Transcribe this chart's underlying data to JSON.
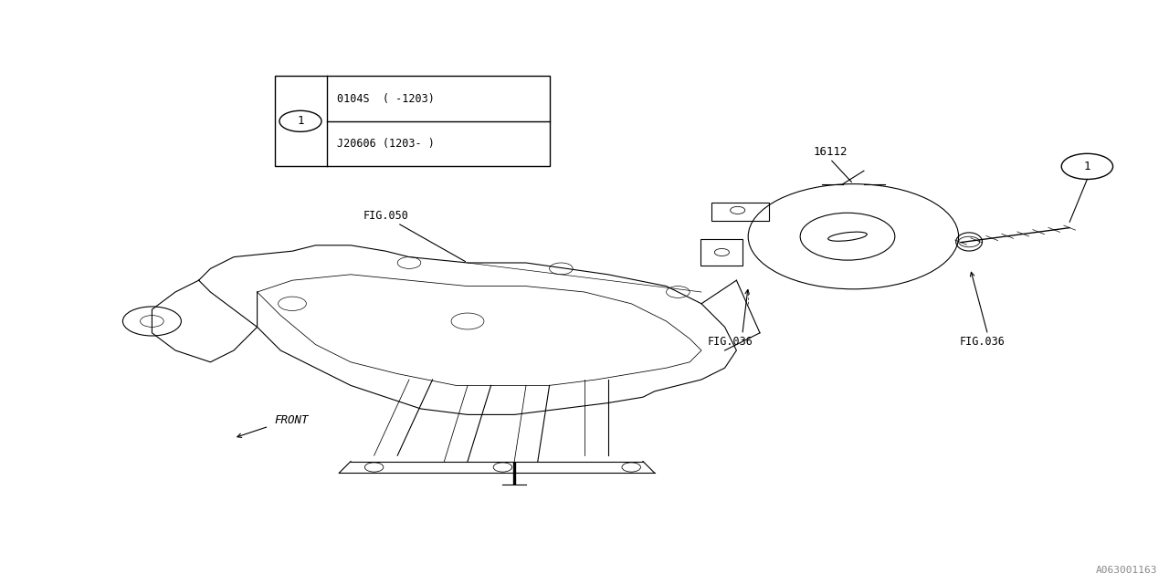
{
  "bg_color": "#ffffff",
  "line_color": "#000000",
  "fig_width": 12.8,
  "fig_height": 6.4,
  "dpi": 100,
  "watermark": "A063001163",
  "part_table": {
    "rows": [
      "0104S  ( -1203)",
      "J20606 (1203- )"
    ]
  },
  "part_number_label": "16112",
  "fig036_left_label": "FIG.036",
  "fig036_right_label": "FIG.036",
  "fig050_label": "FIG.050",
  "front_label": "FRONT"
}
